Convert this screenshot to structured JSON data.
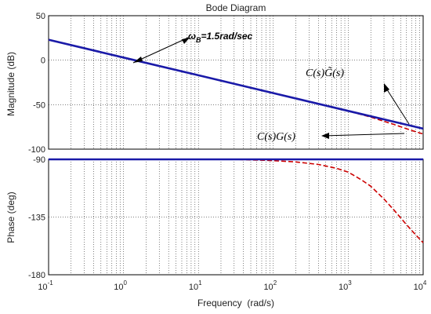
{
  "chart_data": [
    {
      "type": "line",
      "title": "Bode Diagram",
      "ylabel": "Magnitude (dB)",
      "xscale": "log",
      "xlim": [
        0.1,
        10000
      ],
      "ylim": [
        -100,
        50
      ],
      "grid": true,
      "ytick_labels": [
        "50",
        "0",
        "-50",
        "-100"
      ],
      "yticks": [
        50,
        0,
        -50,
        -100
      ],
      "series": [
        {
          "name": "C(s)G(s)",
          "color": "#cc0000",
          "style": "dashed",
          "x": [
            0.1,
            1,
            10,
            100,
            1000,
            2000,
            4000,
            7000,
            10000
          ],
          "y": [
            23,
            3,
            -17,
            -37,
            -57.2,
            -64,
            -72,
            -79,
            -83
          ]
        },
        {
          "name": "C(s)G̃(s)",
          "color": "#1a1aa8",
          "style": "solid",
          "x": [
            0.1,
            1,
            10,
            100,
            1000,
            10000
          ],
          "y": [
            23,
            3,
            -17,
            -37,
            -57,
            -77
          ]
        }
      ]
    },
    {
      "type": "line",
      "xlabel": "Frequency  (rad/s)",
      "ylabel": "Phase (deg)",
      "xscale": "log",
      "xlim": [
        0.1,
        10000
      ],
      "ylim": [
        -180,
        -90
      ],
      "grid": true,
      "yticks": [
        -90,
        -135,
        -180
      ],
      "ytick_labels": [
        "-90",
        "-135",
        "-180"
      ],
      "xtick_labels": [
        {
          "base": "10",
          "exp": "-1"
        },
        {
          "base": "10",
          "exp": "0"
        },
        {
          "base": "10",
          "exp": "1"
        },
        {
          "base": "10",
          "exp": "2"
        },
        {
          "base": "10",
          "exp": "3"
        },
        {
          "base": "10",
          "exp": "4"
        }
      ],
      "series": [
        {
          "name": "C(s)G(s)",
          "color": "#cc0000",
          "style": "dashed",
          "x": [
            0.1,
            1,
            10,
            30,
            100,
            200,
            400,
            700,
            1000,
            1500,
            2000,
            3000,
            4000,
            6000,
            8000,
            10000
          ],
          "y": [
            -90,
            -90,
            -90,
            -90,
            -91,
            -92,
            -94,
            -97,
            -100,
            -106,
            -111,
            -121,
            -129,
            -141,
            -149,
            -155
          ]
        },
        {
          "name": "C(s)G̃(s)",
          "color": "#1a1aa8",
          "style": "solid",
          "x": [
            0.1,
            10000
          ],
          "y": [
            -90,
            -90
          ]
        }
      ]
    }
  ],
  "annotations": {
    "bandwidth": {
      "symbol": "ω",
      "subscript": "B",
      "text": "=1.5rad/sec"
    },
    "tilde_label": "C(s)G̃(s)",
    "plain_label": "C(s)G(s)"
  }
}
